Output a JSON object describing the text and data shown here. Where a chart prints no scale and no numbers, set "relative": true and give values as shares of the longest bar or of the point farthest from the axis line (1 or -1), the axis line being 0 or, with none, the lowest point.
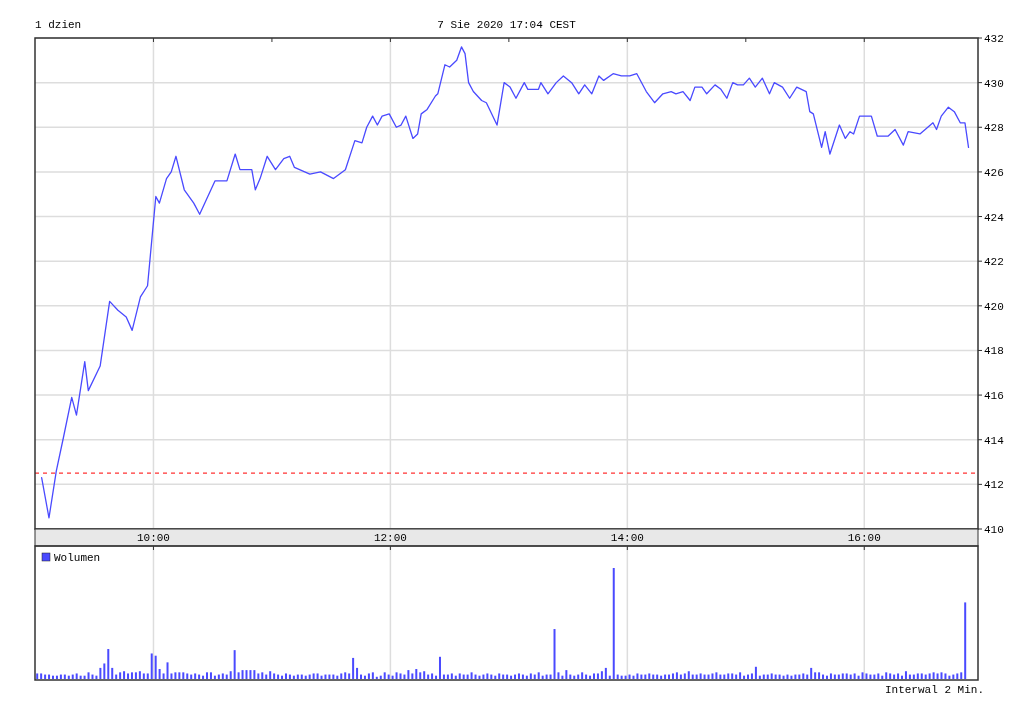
{
  "chart_data": [
    {
      "type": "line",
      "title": "1 dzien",
      "subtitle": "7 Sie 2020 17:04 CEST",
      "x": [
        9.056,
        9.118,
        9.18,
        9.24,
        9.31,
        9.35,
        9.42,
        9.45,
        9.55,
        9.63,
        9.7,
        9.77,
        9.82,
        9.89,
        9.95,
        10.02,
        10.05,
        10.11,
        10.15,
        10.19,
        10.26,
        10.34,
        10.39,
        10.45,
        10.52,
        10.62,
        10.69,
        10.73,
        10.83,
        10.86,
        10.9,
        10.96,
        11.03,
        11.1,
        11.15,
        11.19,
        11.32,
        11.41,
        11.52,
        11.62,
        11.7,
        11.76,
        11.8,
        11.85,
        11.89,
        11.93,
        11.99,
        12.05,
        12.09,
        12.13,
        12.19,
        12.23,
        12.26,
        12.31,
        12.38,
        12.4,
        12.46,
        12.5,
        12.56,
        12.6,
        12.63,
        12.66,
        12.7,
        12.77,
        12.81,
        12.9,
        12.96,
        13.01,
        13.06,
        13.13,
        13.16,
        13.25,
        13.27,
        13.33,
        13.4,
        13.46,
        13.53,
        13.59,
        13.64,
        13.7,
        13.76,
        13.8,
        13.88,
        13.95,
        14.02,
        14.08,
        14.16,
        14.23,
        14.3,
        14.37,
        14.41,
        14.47,
        14.53,
        14.57,
        14.63,
        14.67,
        14.74,
        14.79,
        14.84,
        14.89,
        14.93,
        14.98,
        15.03,
        15.08,
        15.14,
        15.2,
        15.24,
        15.31,
        15.37,
        15.43,
        15.51,
        15.54,
        15.57,
        15.64,
        15.67,
        15.71,
        15.79,
        15.84,
        15.88,
        15.91,
        15.96,
        16.06,
        16.11,
        16.2,
        16.26,
        16.33,
        16.37,
        16.47,
        16.58,
        16.61,
        16.65,
        16.71,
        16.76,
        16.81,
        16.85,
        16.88
      ],
      "series": [
        {
          "color": "#4a4aff",
          "values": [
            412.3,
            410.5,
            412.6,
            414.1,
            415.9,
            415.1,
            417.5,
            416.2,
            417.3,
            420.2,
            419.8,
            419.5,
            418.9,
            420.4,
            420.9,
            424.9,
            424.6,
            425.7,
            426,
            426.7,
            425.2,
            424.6,
            424.1,
            424.8,
            425.6,
            425.6,
            426.8,
            426.1,
            426.1,
            425.2,
            425.7,
            426.7,
            426.1,
            426.6,
            426.7,
            426.2,
            425.9,
            426,
            425.7,
            426.1,
            427.4,
            427.3,
            428,
            428.5,
            428.1,
            428.5,
            428.6,
            428,
            428.1,
            428.5,
            427.5,
            427.7,
            428.6,
            428.8,
            429.4,
            429.5,
            430.8,
            430.7,
            431,
            431.6,
            431.3,
            430,
            429.6,
            429.2,
            429.1,
            428.1,
            430,
            429.8,
            429.3,
            430,
            429.7,
            429.7,
            430,
            429.5,
            430,
            430.3,
            430,
            429.5,
            429.9,
            429.5,
            430.3,
            430.1,
            430.4,
            430.3,
            430.3,
            430.4,
            429.6,
            429.1,
            429.5,
            429.6,
            429.5,
            429.6,
            429.2,
            429.8,
            429.8,
            429.5,
            429.9,
            429.7,
            429.3,
            430,
            429.9,
            429.9,
            430.2,
            429.8,
            430.2,
            429.5,
            430,
            429.8,
            429.3,
            429.8,
            429.6,
            428.7,
            428.6,
            427.1,
            427.8,
            426.8,
            428.1,
            427.5,
            427.8,
            427.7,
            428.5,
            428.5,
            427.6,
            427.6,
            427.9,
            427.2,
            427.8,
            427.7,
            428.2,
            427.9,
            428.5,
            428.9,
            428.7,
            428.2,
            428.2,
            427.1
          ]
        }
      ],
      "xlim": [
        9,
        16.96
      ],
      "ylim": [
        410,
        432
      ],
      "xticks": [
        {
          "value": 10,
          "label": "10:00"
        },
        {
          "value": 11,
          "label": null
        },
        {
          "value": 12,
          "label": "12:00"
        },
        {
          "value": 13,
          "label": null
        },
        {
          "value": 14,
          "label": "14:00"
        },
        {
          "value": 15,
          "label": null
        },
        {
          "value": 16,
          "label": "16:00"
        }
      ],
      "yticks": [
        410,
        412,
        414,
        416,
        418,
        420,
        422,
        424,
        426,
        428,
        430,
        432
      ],
      "grid": true,
      "ref_lines": [
        {
          "axis": "y",
          "value": 412.5,
          "color": "#ff3333",
          "line_style": "dashed"
        }
      ]
    },
    {
      "type": "bar",
      "relative": true,
      "legend": "top left",
      "tick_labels": false,
      "grid": "x",
      "xlim": [
        9,
        16.96
      ],
      "xticks": [
        {
          "value": 10,
          "label": null
        },
        {
          "value": 12,
          "label": null
        },
        {
          "value": 14,
          "label": null
        },
        {
          "value": 16,
          "label": null
        }
      ],
      "annotations": [
        "Interwal 2 Min."
      ],
      "x": [
        9,
        9.0333,
        9.0667,
        9.1,
        9.1333,
        9.1667,
        9.2,
        9.2333,
        9.2667,
        9.3,
        9.3333,
        9.3667,
        9.4,
        9.4333,
        9.4667,
        9.5,
        9.5333,
        9.5667,
        9.6,
        9.6333,
        9.6667,
        9.7,
        9.7333,
        9.7667,
        9.8,
        9.8333,
        9.8667,
        9.9,
        9.9333,
        9.9667,
        10,
        10.0333,
        10.0667,
        10.1,
        10.1333,
        10.1667,
        10.2,
        10.2333,
        10.2667,
        10.3,
        10.3333,
        10.3667,
        10.4,
        10.4333,
        10.4667,
        10.5,
        10.5333,
        10.5667,
        10.6,
        10.6333,
        10.6667,
        10.7,
        10.7333,
        10.7667,
        10.8,
        10.8333,
        10.8667,
        10.9,
        10.9333,
        10.9667,
        11,
        11.0333,
        11.0667,
        11.1,
        11.1333,
        11.1667,
        11.2,
        11.2333,
        11.2667,
        11.3,
        11.3333,
        11.3667,
        11.4,
        11.4333,
        11.4667,
        11.5,
        11.5333,
        11.5667,
        11.6,
        11.6333,
        11.6667,
        11.7,
        11.7333,
        11.7667,
        11.8,
        11.8333,
        11.8667,
        11.9,
        11.9333,
        11.9667,
        12,
        12.0333,
        12.0667,
        12.1,
        12.1333,
        12.1667,
        12.2,
        12.2333,
        12.2667,
        12.3,
        12.3333,
        12.3667,
        12.4,
        12.4333,
        12.4667,
        12.5,
        12.5333,
        12.5667,
        12.6,
        12.6333,
        12.6667,
        12.7,
        12.7333,
        12.7667,
        12.8,
        12.8333,
        12.8667,
        12.9,
        12.9333,
        12.9667,
        13,
        13.0333,
        13.0667,
        13.1,
        13.1333,
        13.1667,
        13.2,
        13.2333,
        13.2667,
        13.3,
        13.3333,
        13.3667,
        13.4,
        13.4333,
        13.4667,
        13.5,
        13.5333,
        13.5667,
        13.6,
        13.6333,
        13.6667,
        13.7,
        13.7333,
        13.7667,
        13.8,
        13.8333,
        13.8667,
        13.9,
        13.9333,
        13.9667,
        14,
        14.0333,
        14.0667,
        14.1,
        14.1333,
        14.1667,
        14.2,
        14.2333,
        14.2667,
        14.3,
        14.3333,
        14.3667,
        14.4,
        14.4333,
        14.4667,
        14.5,
        14.5333,
        14.5667,
        14.6,
        14.6333,
        14.6667,
        14.7,
        14.7333,
        14.7667,
        14.8,
        14.8333,
        14.8667,
        14.9,
        14.9333,
        14.9667,
        15,
        15.0333,
        15.0667,
        15.1,
        15.1333,
        15.1667,
        15.2,
        15.2333,
        15.2667,
        15.3,
        15.3333,
        15.3667,
        15.4,
        15.4333,
        15.4667,
        15.5,
        15.5333,
        15.5667,
        15.6,
        15.6333,
        15.6667,
        15.7,
        15.7333,
        15.7667,
        15.8,
        15.8333,
        15.8667,
        15.9,
        15.9333,
        15.9667,
        16,
        16.0333,
        16.0667,
        16.1,
        16.1333,
        16.1667,
        16.2,
        16.2333,
        16.2667,
        16.3,
        16.3333,
        16.3667,
        16.4,
        16.4333,
        16.4667,
        16.5,
        16.5333,
        16.5667,
        16.6,
        16.6333,
        16.6667,
        16.7,
        16.7333,
        16.7667,
        16.8,
        16.8333
      ],
      "series": [
        {
          "name": "Wolumen",
          "color": "#4a4aff",
          "values": [
            0.05,
            0.05,
            0.04,
            0.04,
            0.03,
            0.03,
            0.04,
            0.04,
            0.03,
            0.04,
            0.05,
            0.03,
            0.03,
            0.06,
            0.04,
            0.03,
            0.1,
            0.14,
            0.27,
            0.1,
            0.04,
            0.06,
            0.07,
            0.05,
            0.06,
            0.06,
            0.07,
            0.05,
            0.05,
            0.23,
            0.21,
            0.09,
            0.05,
            0.15,
            0.05,
            0.06,
            0.06,
            0.06,
            0.05,
            0.04,
            0.05,
            0.04,
            0.03,
            0.06,
            0.06,
            0.03,
            0.04,
            0.05,
            0.04,
            0.07,
            0.26,
            0.06,
            0.08,
            0.08,
            0.08,
            0.08,
            0.05,
            0.06,
            0.04,
            0.07,
            0.05,
            0.04,
            0.03,
            0.05,
            0.04,
            0.03,
            0.04,
            0.04,
            0.03,
            0.04,
            0.05,
            0.05,
            0.03,
            0.04,
            0.04,
            0.04,
            0.03,
            0.05,
            0.06,
            0.05,
            0.19,
            0.1,
            0.04,
            0.03,
            0.05,
            0.06,
            0.02,
            0.03,
            0.06,
            0.04,
            0.03,
            0.06,
            0.05,
            0.04,
            0.08,
            0.05,
            0.09,
            0.06,
            0.07,
            0.04,
            0.05,
            0.03,
            0.2,
            0.04,
            0.04,
            0.05,
            0.03,
            0.05,
            0.04,
            0.04,
            0.06,
            0.04,
            0.03,
            0.04,
            0.05,
            0.04,
            0.03,
            0.05,
            0.04,
            0.04,
            0.03,
            0.04,
            0.05,
            0.04,
            0.03,
            0.05,
            0.04,
            0.06,
            0.03,
            0.04,
            0.04,
            0.45,
            0.06,
            0.03,
            0.08,
            0.04,
            0.03,
            0.04,
            0.06,
            0.04,
            0.03,
            0.05,
            0.05,
            0.07,
            0.1,
            0.03,
            1,
            0.04,
            0.03,
            0.03,
            0.04,
            0.03,
            0.05,
            0.04,
            0.04,
            0.05,
            0.04,
            0.04,
            0.03,
            0.04,
            0.04,
            0.05,
            0.06,
            0.04,
            0.05,
            0.07,
            0.04,
            0.04,
            0.05,
            0.04,
            0.04,
            0.05,
            0.06,
            0.04,
            0.04,
            0.05,
            0.05,
            0.04,
            0.06,
            0.03,
            0.04,
            0.05,
            0.11,
            0.03,
            0.04,
            0.04,
            0.05,
            0.04,
            0.04,
            0.03,
            0.04,
            0.03,
            0.04,
            0.04,
            0.05,
            0.04,
            0.1,
            0.06,
            0.06,
            0.04,
            0.03,
            0.05,
            0.04,
            0.04,
            0.05,
            0.05,
            0.04,
            0.05,
            0.03,
            0.06,
            0.05,
            0.04,
            0.04,
            0.05,
            0.03,
            0.06,
            0.05,
            0.04,
            0.05,
            0.03,
            0.07,
            0.04,
            0.04,
            0.05,
            0.05,
            0.04,
            0.05,
            0.06,
            0.05,
            0.06,
            0.05,
            0.03,
            0.04,
            0.05,
            0.06,
            0.69
          ]
        }
      ]
    }
  ]
}
